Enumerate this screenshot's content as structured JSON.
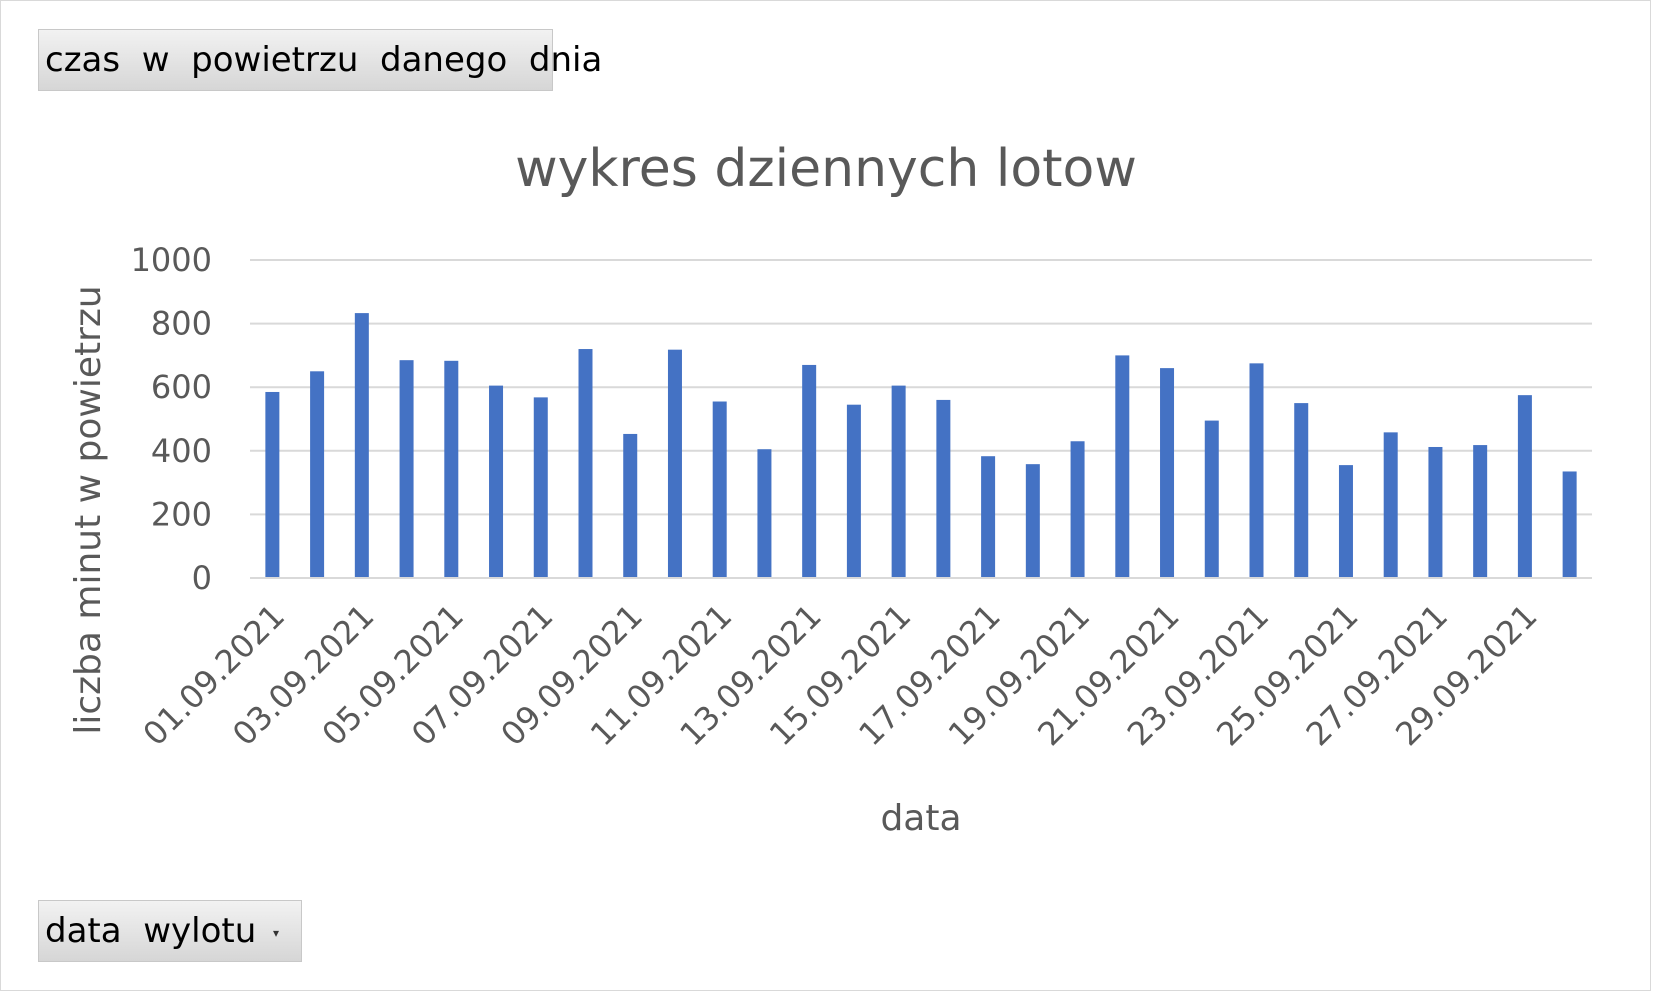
{
  "pivot": {
    "value_field": "czas  w  powietrzu  danego  dnia",
    "axis_field": "data  wylotu"
  },
  "icons": {
    "dropdown": "chevron-down-icon"
  },
  "chart_data": {
    "type": "bar",
    "title": "wykres dziennych lotow",
    "xlabel": "data",
    "ylabel": "liczba minut w powietrzu",
    "ylim": [
      0,
      1000
    ],
    "yticks": [
      0,
      200,
      400,
      600,
      800,
      1000
    ],
    "grid": true,
    "color": "#4472C4",
    "categories": [
      "01.09.2021",
      "02.09.2021",
      "03.09.2021",
      "04.09.2021",
      "05.09.2021",
      "06.09.2021",
      "07.09.2021",
      "08.09.2021",
      "09.09.2021",
      "10.09.2021",
      "11.09.2021",
      "12.09.2021",
      "13.09.2021",
      "14.09.2021",
      "15.09.2021",
      "16.09.2021",
      "17.09.2021",
      "18.09.2021",
      "19.09.2021",
      "20.09.2021",
      "21.09.2021",
      "22.09.2021",
      "23.09.2021",
      "24.09.2021",
      "25.09.2021",
      "26.09.2021",
      "27.09.2021",
      "28.09.2021",
      "29.09.2021",
      "30.09.2021"
    ],
    "visible_tick_labels": [
      "01.09.2021",
      "03.09.2021",
      "05.09.2021",
      "07.09.2021",
      "09.09.2021",
      "11.09.2021",
      "13.09.2021",
      "15.09.2021",
      "17.09.2021",
      "19.09.2021",
      "21.09.2021",
      "23.09.2021",
      "25.09.2021",
      "27.09.2021",
      "29.09.2021"
    ],
    "values": [
      585,
      650,
      833,
      685,
      683,
      605,
      568,
      720,
      453,
      718,
      555,
      405,
      670,
      545,
      605,
      560,
      383,
      358,
      430,
      700,
      660,
      495,
      675,
      550,
      355,
      458,
      412,
      418,
      575,
      335
    ]
  }
}
